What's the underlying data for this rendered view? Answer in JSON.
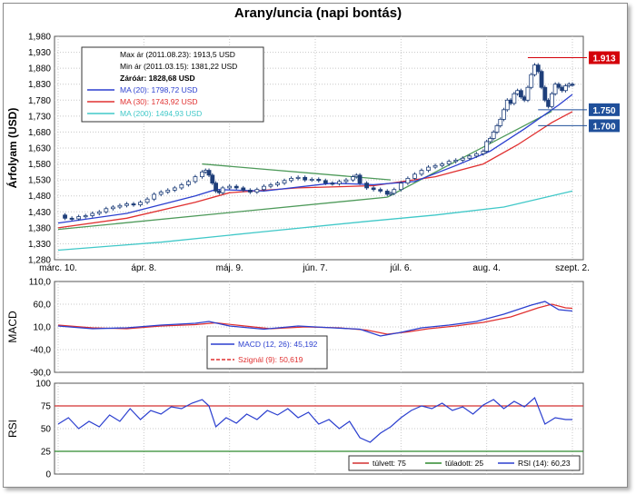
{
  "title": "Arany/uncia (napi bontás)",
  "chart_data": [
    {
      "type": "candlestick",
      "ylabel": "Árfolyam (USD)",
      "ylim": [
        1280,
        1980
      ],
      "yticks": [
        "1,980",
        "1,930",
        "1,880",
        "1,830",
        "1,780",
        "1,730",
        "1,680",
        "1,630",
        "1,580",
        "1,530",
        "1,480",
        "1,430",
        "1,380",
        "1,330",
        "1,280"
      ],
      "xticks": [
        "márc. 10.",
        "ápr. 8.",
        "máj. 9.",
        "jún. 7.",
        "júl. 6.",
        "aug. 4.",
        "szept. 2."
      ],
      "price_labels": [
        {
          "text": "1.913",
          "value": 1913,
          "color": "#d4000a"
        },
        {
          "text": "1.750",
          "value": 1750,
          "color": "#1f4f9a"
        },
        {
          "text": "1.700",
          "value": 1700,
          "color": "#1f4f9a"
        }
      ],
      "legend": {
        "max": "Max ár (2011.08.23): 1913,5 USD",
        "min": "Min ár (2011.03.15): 1381,22 USD",
        "close": "Záróár: 1828,68 USD",
        "ma20": "MA (20): 1798,72 USD",
        "ma30": "MA (30): 1743,92 USD",
        "ma200": "MA (200): 1494,93 USD"
      },
      "colors": {
        "candle": "#1f3f7a",
        "ma20": "#2b3fcf",
        "ma30": "#e03030",
        "ma200": "#40c8c8",
        "trend": "#4e9a5a",
        "grid": "#c8c8c8"
      },
      "close_series": [
        [
          0,
          1420
        ],
        [
          2,
          1410
        ],
        [
          4,
          1408
        ],
        [
          6,
          1415
        ],
        [
          8,
          1418
        ],
        [
          10,
          1425
        ],
        [
          12,
          1430
        ],
        [
          14,
          1440
        ],
        [
          16,
          1445
        ],
        [
          18,
          1450
        ],
        [
          20,
          1455
        ],
        [
          22,
          1452
        ],
        [
          24,
          1460
        ],
        [
          26,
          1470
        ],
        [
          28,
          1485
        ],
        [
          30,
          1492
        ],
        [
          32,
          1498
        ],
        [
          34,
          1505
        ],
        [
          36,
          1515
        ],
        [
          38,
          1525
        ],
        [
          40,
          1540
        ],
        [
          42,
          1555
        ],
        [
          43,
          1560
        ],
        [
          44,
          1545
        ],
        [
          45,
          1520
        ],
        [
          46,
          1495
        ],
        [
          47,
          1490
        ],
        [
          48,
          1505
        ],
        [
          50,
          1510
        ],
        [
          52,
          1505
        ],
        [
          54,
          1498
        ],
        [
          56,
          1492
        ],
        [
          58,
          1500
        ],
        [
          60,
          1510
        ],
        [
          62,
          1515
        ],
        [
          64,
          1520
        ],
        [
          66,
          1528
        ],
        [
          68,
          1535
        ],
        [
          70,
          1538
        ],
        [
          72,
          1530
        ],
        [
          74,
          1532
        ],
        [
          76,
          1528
        ],
        [
          78,
          1520
        ],
        [
          80,
          1518
        ],
        [
          82,
          1525
        ],
        [
          84,
          1530
        ],
        [
          86,
          1540
        ],
        [
          87,
          1545
        ],
        [
          88,
          1520
        ],
        [
          90,
          1505
        ],
        [
          92,
          1500
        ],
        [
          94,
          1495
        ],
        [
          96,
          1485
        ],
        [
          97,
          1488
        ],
        [
          98,
          1500
        ],
        [
          100,
          1520
        ],
        [
          102,
          1535
        ],
        [
          104,
          1548
        ],
        [
          106,
          1560
        ],
        [
          108,
          1570
        ],
        [
          110,
          1575
        ],
        [
          112,
          1580
        ],
        [
          114,
          1588
        ],
        [
          116,
          1592
        ],
        [
          118,
          1598
        ],
        [
          120,
          1605
        ],
        [
          122,
          1612
        ],
        [
          124,
          1620
        ],
        [
          125,
          1650
        ],
        [
          126,
          1660
        ],
        [
          127,
          1680
        ],
        [
          128,
          1700
        ],
        [
          129,
          1720
        ],
        [
          130,
          1750
        ],
        [
          131,
          1780
        ],
        [
          132,
          1770
        ],
        [
          133,
          1800
        ],
        [
          134,
          1810
        ],
        [
          135,
          1790
        ],
        [
          136,
          1780
        ],
        [
          137,
          1820
        ],
        [
          138,
          1860
        ],
        [
          139,
          1890
        ],
        [
          140,
          1870
        ],
        [
          141,
          1820
        ],
        [
          142,
          1780
        ],
        [
          143,
          1760
        ],
        [
          144,
          1800
        ],
        [
          145,
          1830
        ],
        [
          146,
          1820
        ],
        [
          147,
          1810
        ],
        [
          148,
          1825
        ],
        [
          149,
          1830
        ],
        [
          150,
          1828
        ]
      ],
      "ma20_series": [
        [
          0,
          1395
        ],
        [
          20,
          1425
        ],
        [
          40,
          1480
        ],
        [
          46,
          1500
        ],
        [
          60,
          1495
        ],
        [
          80,
          1520
        ],
        [
          92,
          1515
        ],
        [
          104,
          1525
        ],
        [
          116,
          1575
        ],
        [
          126,
          1620
        ],
        [
          136,
          1690
        ],
        [
          146,
          1765
        ],
        [
          150,
          1798
        ]
      ],
      "ma30_series": [
        [
          0,
          1380
        ],
        [
          20,
          1410
        ],
        [
          40,
          1460
        ],
        [
          50,
          1490
        ],
        [
          70,
          1505
        ],
        [
          92,
          1512
        ],
        [
          110,
          1540
        ],
        [
          124,
          1580
        ],
        [
          134,
          1640
        ],
        [
          144,
          1710
        ],
        [
          150,
          1744
        ]
      ],
      "ma200_series": [
        [
          0,
          1310
        ],
        [
          30,
          1335
        ],
        [
          60,
          1368
        ],
        [
          90,
          1400
        ],
        [
          110,
          1420
        ],
        [
          130,
          1445
        ],
        [
          150,
          1495
        ]
      ]
    },
    {
      "type": "line",
      "ylabel": "MACD",
      "ylim": [
        -90,
        110
      ],
      "yticks": [
        "110,0",
        "60,0",
        "10,0",
        "-40,0",
        "-90,0"
      ],
      "series": [
        {
          "name": "MACD (12, 26): 45,192",
          "color": "#2b3fcf"
        },
        {
          "name": "Szignál (9): 50,619",
          "color": "#e03030"
        }
      ],
      "macd": [
        [
          0,
          12
        ],
        [
          10,
          6
        ],
        [
          20,
          8
        ],
        [
          30,
          14
        ],
        [
          40,
          18
        ],
        [
          44,
          22
        ],
        [
          50,
          12
        ],
        [
          60,
          5
        ],
        [
          70,
          12
        ],
        [
          80,
          8
        ],
        [
          88,
          5
        ],
        [
          94,
          -10
        ],
        [
          100,
          -2
        ],
        [
          106,
          8
        ],
        [
          114,
          14
        ],
        [
          122,
          22
        ],
        [
          130,
          38
        ],
        [
          138,
          58
        ],
        [
          142,
          66
        ],
        [
          146,
          48
        ],
        [
          150,
          45
        ]
      ],
      "signal": [
        [
          0,
          14
        ],
        [
          10,
          8
        ],
        [
          20,
          6
        ],
        [
          30,
          12
        ],
        [
          40,
          15
        ],
        [
          46,
          19
        ],
        [
          52,
          14
        ],
        [
          62,
          6
        ],
        [
          72,
          10
        ],
        [
          82,
          8
        ],
        [
          90,
          3
        ],
        [
          96,
          -6
        ],
        [
          102,
          -1
        ],
        [
          108,
          6
        ],
        [
          116,
          12
        ],
        [
          124,
          20
        ],
        [
          132,
          32
        ],
        [
          140,
          52
        ],
        [
          144,
          60
        ],
        [
          148,
          52
        ],
        [
          150,
          51
        ]
      ]
    },
    {
      "type": "line",
      "ylabel": "RSI",
      "ylim": [
        0,
        100
      ],
      "yticks": [
        "100",
        "75",
        "50",
        "25",
        "0"
      ],
      "series": [
        {
          "name": "túlvett: 75",
          "color": "#d43030"
        },
        {
          "name": "túladott: 25",
          "color": "#2f8a2f"
        },
        {
          "name": "RSI (14): 60,23",
          "color": "#2b3fcf"
        }
      ],
      "overbought": 75,
      "oversold": 25,
      "rsi": [
        [
          0,
          55
        ],
        [
          3,
          62
        ],
        [
          6,
          50
        ],
        [
          9,
          58
        ],
        [
          12,
          52
        ],
        [
          15,
          65
        ],
        [
          18,
          58
        ],
        [
          21,
          72
        ],
        [
          24,
          60
        ],
        [
          27,
          70
        ],
        [
          30,
          66
        ],
        [
          33,
          74
        ],
        [
          36,
          72
        ],
        [
          39,
          78
        ],
        [
          42,
          82
        ],
        [
          44,
          75
        ],
        [
          46,
          52
        ],
        [
          49,
          62
        ],
        [
          52,
          56
        ],
        [
          55,
          66
        ],
        [
          58,
          60
        ],
        [
          61,
          70
        ],
        [
          64,
          65
        ],
        [
          67,
          72
        ],
        [
          70,
          62
        ],
        [
          73,
          68
        ],
        [
          76,
          55
        ],
        [
          79,
          60
        ],
        [
          82,
          50
        ],
        [
          85,
          58
        ],
        [
          88,
          40
        ],
        [
          91,
          35
        ],
        [
          94,
          45
        ],
        [
          97,
          52
        ],
        [
          100,
          62
        ],
        [
          103,
          70
        ],
        [
          106,
          75
        ],
        [
          109,
          72
        ],
        [
          112,
          78
        ],
        [
          115,
          70
        ],
        [
          118,
          74
        ],
        [
          121,
          66
        ],
        [
          124,
          76
        ],
        [
          127,
          82
        ],
        [
          130,
          72
        ],
        [
          133,
          80
        ],
        [
          136,
          74
        ],
        [
          139,
          84
        ],
        [
          142,
          55
        ],
        [
          145,
          62
        ],
        [
          148,
          60
        ],
        [
          150,
          60
        ]
      ]
    }
  ]
}
